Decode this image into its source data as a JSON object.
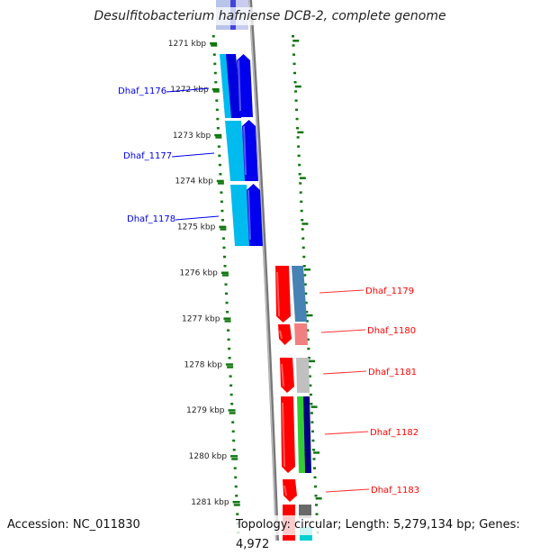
{
  "title": "Desulfitobacterium hafniense DCB-2, complete genome",
  "footer": {
    "accession": "Accession: NC_011830",
    "topology": "Topology: circular; Length: 5,279,134 bp; Genes: 4,972"
  },
  "ticks": [
    "1271 kbp",
    "1272 kbp",
    "1273 kbp",
    "1274 kbp",
    "1275 kbp",
    "1276 kbp",
    "1277 kbp",
    "1278 kbp",
    "1279 kbp",
    "1280 kbp",
    "1281 kbp"
  ],
  "gene_labels_left": [
    "Dhaf_1176",
    "Dhaf_1177",
    "Dhaf_1178"
  ],
  "gene_labels_right": [
    "Dhaf_1179",
    "Dhaf_1180",
    "Dhaf_1181",
    "Dhaf_1182",
    "Dhaf_1183"
  ],
  "colors": {
    "forward_strand": "#0000ee",
    "reverse_strand": "#ff0000",
    "tick": "#117711",
    "backbone": "#888888"
  }
}
